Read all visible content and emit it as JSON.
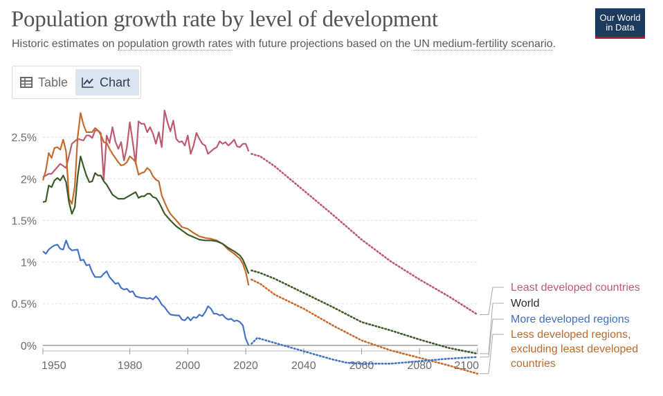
{
  "header": {
    "title": "Population growth rate by level of development",
    "subtitle_pre": "Historic estimates on ",
    "subtitle_link1": "population growth rates",
    "subtitle_mid": " with future projections based on the ",
    "subtitle_link2": "UN medium-fertility scenario",
    "subtitle_post": ".",
    "logo_line1": "Our World",
    "logo_line2": "in Data"
  },
  "tabs": [
    {
      "label": "Table",
      "icon": "table-icon"
    },
    {
      "label": "Chart",
      "icon": "chart-icon"
    }
  ],
  "chart_data": {
    "type": "line",
    "title": "Population growth rate by level of development",
    "ylim": [
      -0.4,
      2.9
    ],
    "xlim": [
      1950,
      2100
    ],
    "yticks": [
      0,
      0.5,
      1,
      1.5,
      2,
      2.5
    ],
    "ytick_labels": [
      "0%",
      "0.5%",
      "1%",
      "1.5%",
      "2%",
      "2.5%"
    ],
    "xticks": [
      1950,
      1980,
      2000,
      2020,
      2040,
      2060,
      2080,
      2100
    ],
    "projection_start": 2022,
    "series": [
      {
        "name": "Least developed countries",
        "color": "#be5a6f",
        "label_color": "#be5a6f",
        "label_lines": [
          "Least developed countries"
        ],
        "historic": [
          [
            1950,
            2.02
          ],
          [
            1952,
            2.06
          ],
          [
            1953,
            2.06
          ],
          [
            1954,
            2.1
          ],
          [
            1956,
            2.18
          ],
          [
            1958,
            2.13
          ],
          [
            1960,
            2.42
          ],
          [
            1962,
            2.48
          ],
          [
            1964,
            2.46
          ],
          [
            1965,
            2.52
          ],
          [
            1966,
            2.52
          ],
          [
            1967,
            2.49
          ],
          [
            1968,
            2.58
          ],
          [
            1969,
            2.58
          ],
          [
            1970,
            2.55
          ],
          [
            1971,
            1.99
          ],
          [
            1972,
            2.52
          ],
          [
            1973,
            2.43
          ],
          [
            1974,
            2.62
          ],
          [
            1975,
            2.45
          ],
          [
            1976,
            2.36
          ],
          [
            1977,
            2.44
          ],
          [
            1978,
            2.22
          ],
          [
            1979,
            2.38
          ],
          [
            1980,
            2.68
          ],
          [
            1981,
            2.44
          ],
          [
            1982,
            2.18
          ],
          [
            1983,
            2.69
          ],
          [
            1984,
            2.66
          ],
          [
            1985,
            2.66
          ],
          [
            1986,
            2.56
          ],
          [
            1987,
            2.62
          ],
          [
            1988,
            2.54
          ],
          [
            1989,
            2.42
          ],
          [
            1990,
            2.56
          ],
          [
            1991,
            2.38
          ],
          [
            1992,
            2.82
          ],
          [
            1993,
            2.68
          ],
          [
            1994,
            2.57
          ],
          [
            1995,
            2.7
          ],
          [
            1996,
            2.48
          ],
          [
            1997,
            2.44
          ],
          [
            1998,
            2.45
          ],
          [
            1999,
            2.4
          ],
          [
            2000,
            2.52
          ],
          [
            2001,
            2.3
          ],
          [
            2002,
            2.4
          ],
          [
            2003,
            2.55
          ],
          [
            2004,
            2.48
          ],
          [
            2005,
            2.42
          ],
          [
            2006,
            2.4
          ],
          [
            2007,
            2.3
          ],
          [
            2008,
            2.33
          ],
          [
            2009,
            2.36
          ],
          [
            2010,
            2.38
          ],
          [
            2011,
            2.45
          ],
          [
            2012,
            2.42
          ],
          [
            2013,
            2.44
          ],
          [
            2014,
            2.4
          ],
          [
            2015,
            2.43
          ],
          [
            2016,
            2.47
          ],
          [
            2017,
            2.39
          ],
          [
            2018,
            2.38
          ],
          [
            2019,
            2.42
          ],
          [
            2020,
            2.42
          ],
          [
            2021,
            2.33
          ]
        ],
        "projected": [
          [
            2022,
            2.3
          ],
          [
            2025,
            2.27
          ],
          [
            2030,
            2.15
          ],
          [
            2040,
            1.86
          ],
          [
            2050,
            1.57
          ],
          [
            2060,
            1.27
          ],
          [
            2070,
            1.01
          ],
          [
            2080,
            0.79
          ],
          [
            2090,
            0.59
          ],
          [
            2100,
            0.37
          ]
        ]
      },
      {
        "name": "World",
        "color": "#3b5a28",
        "label_color": "#2b2b2b",
        "label_lines": [
          "World"
        ],
        "historic": [
          [
            1950,
            1.72
          ],
          [
            1951,
            1.73
          ],
          [
            1952,
            1.92
          ],
          [
            1953,
            1.9
          ],
          [
            1954,
            1.98
          ],
          [
            1955,
            2.01
          ],
          [
            1956,
            1.98
          ],
          [
            1957,
            2.04
          ],
          [
            1958,
            1.96
          ],
          [
            1959,
            1.72
          ],
          [
            1960,
            1.58
          ],
          [
            1961,
            1.66
          ],
          [
            1962,
            2.03
          ],
          [
            1963,
            2.27
          ],
          [
            1964,
            2.15
          ],
          [
            1965,
            2.04
          ],
          [
            1966,
            1.96
          ],
          [
            1967,
            1.97
          ],
          [
            1968,
            2.07
          ],
          [
            1969,
            2.04
          ],
          [
            1970,
            2.04
          ],
          [
            1971,
            1.97
          ],
          [
            1972,
            1.93
          ],
          [
            1974,
            1.81
          ],
          [
            1976,
            1.76
          ],
          [
            1978,
            1.76
          ],
          [
            1980,
            1.8
          ],
          [
            1982,
            1.84
          ],
          [
            1983,
            1.77
          ],
          [
            1984,
            1.79
          ],
          [
            1985,
            1.79
          ],
          [
            1986,
            1.82
          ],
          [
            1987,
            1.82
          ],
          [
            1988,
            1.78
          ],
          [
            1989,
            1.77
          ],
          [
            1990,
            1.72
          ],
          [
            1991,
            1.65
          ],
          [
            1992,
            1.58
          ],
          [
            1994,
            1.5
          ],
          [
            1996,
            1.43
          ],
          [
            1998,
            1.38
          ],
          [
            2000,
            1.33
          ],
          [
            2002,
            1.3
          ],
          [
            2004,
            1.27
          ],
          [
            2006,
            1.26
          ],
          [
            2008,
            1.26
          ],
          [
            2010,
            1.25
          ],
          [
            2012,
            1.22
          ],
          [
            2014,
            1.17
          ],
          [
            2016,
            1.13
          ],
          [
            2018,
            1.08
          ],
          [
            2019,
            1.03
          ],
          [
            2020,
            0.95
          ],
          [
            2021,
            0.86
          ]
        ],
        "projected": [
          [
            2022,
            0.9
          ],
          [
            2025,
            0.87
          ],
          [
            2030,
            0.8
          ],
          [
            2040,
            0.63
          ],
          [
            2050,
            0.46
          ],
          [
            2060,
            0.28
          ],
          [
            2070,
            0.18
          ],
          [
            2080,
            0.07
          ],
          [
            2090,
            -0.03
          ],
          [
            2100,
            -0.1
          ]
        ]
      },
      {
        "name": "More developed regions",
        "color": "#4472c4",
        "label_color": "#3f6ec0",
        "label_lines": [
          "More developed regions"
        ],
        "historic": [
          [
            1950,
            1.13
          ],
          [
            1951,
            1.1
          ],
          [
            1952,
            1.15
          ],
          [
            1953,
            1.18
          ],
          [
            1954,
            1.2
          ],
          [
            1955,
            1.21
          ],
          [
            1956,
            1.16
          ],
          [
            1957,
            1.15
          ],
          [
            1958,
            1.26
          ],
          [
            1959,
            1.17
          ],
          [
            1960,
            1.14
          ],
          [
            1962,
            1.15
          ],
          [
            1963,
            1.02
          ],
          [
            1964,
            1.03
          ],
          [
            1965,
            0.96
          ],
          [
            1966,
            0.97
          ],
          [
            1967,
            0.88
          ],
          [
            1968,
            0.82
          ],
          [
            1970,
            0.82
          ],
          [
            1971,
            0.86
          ],
          [
            1972,
            0.89
          ],
          [
            1973,
            0.82
          ],
          [
            1975,
            0.74
          ],
          [
            1976,
            0.75
          ],
          [
            1977,
            0.69
          ],
          [
            1978,
            0.67
          ],
          [
            1979,
            0.68
          ],
          [
            1980,
            0.64
          ],
          [
            1981,
            0.65
          ],
          [
            1982,
            0.59
          ],
          [
            1984,
            0.57
          ],
          [
            1985,
            0.57
          ],
          [
            1986,
            0.56
          ],
          [
            1987,
            0.57
          ],
          [
            1988,
            0.55
          ],
          [
            1989,
            0.59
          ],
          [
            1990,
            0.55
          ],
          [
            1991,
            0.49
          ],
          [
            1992,
            0.46
          ],
          [
            1993,
            0.41
          ],
          [
            1994,
            0.37
          ],
          [
            1996,
            0.36
          ],
          [
            1997,
            0.36
          ],
          [
            1998,
            0.31
          ],
          [
            1999,
            0.3
          ],
          [
            2000,
            0.34
          ],
          [
            2001,
            0.3
          ],
          [
            2002,
            0.34
          ],
          [
            2003,
            0.33
          ],
          [
            2004,
            0.37
          ],
          [
            2005,
            0.35
          ],
          [
            2006,
            0.4
          ],
          [
            2007,
            0.47
          ],
          [
            2008,
            0.44
          ],
          [
            2009,
            0.38
          ],
          [
            2010,
            0.38
          ],
          [
            2011,
            0.36
          ],
          [
            2012,
            0.37
          ],
          [
            2013,
            0.33
          ],
          [
            2014,
            0.31
          ],
          [
            2015,
            0.32
          ],
          [
            2016,
            0.29
          ],
          [
            2017,
            0.3
          ],
          [
            2018,
            0.28
          ],
          [
            2019,
            0.24
          ],
          [
            2020,
            0.08
          ],
          [
            2021,
            0.0
          ]
        ],
        "projected": [
          [
            2022,
            0.02
          ],
          [
            2024,
            0.09
          ],
          [
            2030,
            0.03
          ],
          [
            2040,
            -0.07
          ],
          [
            2050,
            -0.17
          ],
          [
            2055,
            -0.21
          ],
          [
            2060,
            -0.22
          ],
          [
            2070,
            -0.22
          ],
          [
            2080,
            -0.19
          ],
          [
            2090,
            -0.16
          ],
          [
            2100,
            -0.14
          ]
        ]
      },
      {
        "name": "Less developed regions, excluding least developed countries",
        "color": "#c46a2c",
        "label_color": "#bb6a2e",
        "label_lines": [
          "Less developed regions,",
          "excluding least developed",
          "countries"
        ],
        "historic": [
          [
            1950,
            1.98
          ],
          [
            1951,
            2.1
          ],
          [
            1952,
            2.31
          ],
          [
            1953,
            2.25
          ],
          [
            1954,
            2.37
          ],
          [
            1955,
            2.38
          ],
          [
            1956,
            2.35
          ],
          [
            1957,
            2.47
          ],
          [
            1958,
            2.33
          ],
          [
            1959,
            1.76
          ],
          [
            1960,
            1.7
          ],
          [
            1961,
            1.91
          ],
          [
            1962,
            2.5
          ],
          [
            1963,
            2.79
          ],
          [
            1964,
            2.65
          ],
          [
            1965,
            2.56
          ],
          [
            1966,
            2.56
          ],
          [
            1967,
            2.56
          ],
          [
            1968,
            2.61
          ],
          [
            1969,
            2.58
          ],
          [
            1970,
            2.53
          ],
          [
            1971,
            2.44
          ],
          [
            1972,
            2.43
          ],
          [
            1973,
            2.36
          ],
          [
            1974,
            2.3
          ],
          [
            1975,
            2.25
          ],
          [
            1976,
            2.2
          ],
          [
            1977,
            2.16
          ],
          [
            1978,
            2.17
          ],
          [
            1979,
            2.2
          ],
          [
            1980,
            2.27
          ],
          [
            1981,
            2.24
          ],
          [
            1982,
            2.2
          ],
          [
            1983,
            2.05
          ],
          [
            1984,
            2.07
          ],
          [
            1985,
            2.08
          ],
          [
            1986,
            2.13
          ],
          [
            1987,
            2.1
          ],
          [
            1988,
            2.03
          ],
          [
            1989,
            1.99
          ],
          [
            1990,
            1.97
          ],
          [
            1991,
            1.8
          ],
          [
            1992,
            1.72
          ],
          [
            1993,
            1.64
          ],
          [
            1994,
            1.58
          ],
          [
            1996,
            1.5
          ],
          [
            1998,
            1.42
          ],
          [
            2000,
            1.4
          ],
          [
            2002,
            1.35
          ],
          [
            2004,
            1.31
          ],
          [
            2006,
            1.29
          ],
          [
            2008,
            1.28
          ],
          [
            2010,
            1.26
          ],
          [
            2012,
            1.22
          ],
          [
            2014,
            1.15
          ],
          [
            2016,
            1.1
          ],
          [
            2018,
            1.04
          ],
          [
            2019,
            0.98
          ],
          [
            2020,
            0.88
          ],
          [
            2021,
            0.72
          ]
        ],
        "projected": [
          [
            2022,
            0.79
          ],
          [
            2025,
            0.74
          ],
          [
            2030,
            0.61
          ],
          [
            2040,
            0.44
          ],
          [
            2050,
            0.24
          ],
          [
            2060,
            0.06
          ],
          [
            2070,
            -0.06
          ],
          [
            2080,
            -0.15
          ],
          [
            2090,
            -0.24
          ],
          [
            2100,
            -0.34
          ]
        ]
      }
    ]
  }
}
